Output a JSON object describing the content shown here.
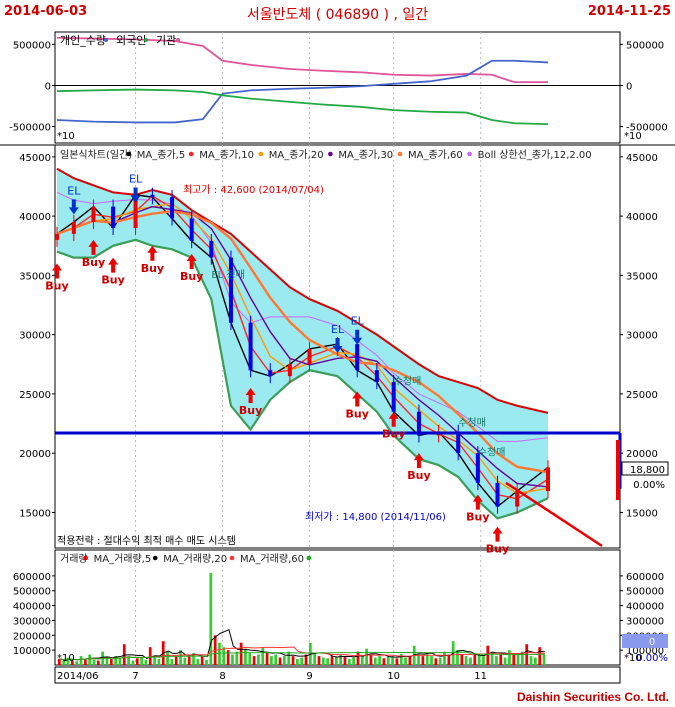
{
  "header": {
    "start_date": "2014-06-03",
    "title": "서울반도체 ( 046890 ) , 일간",
    "end_date": "2014-11-25"
  },
  "footer": {
    "brand": "Daishin Securities Co. Ltd."
  },
  "colors": {
    "individual": "#e0559a",
    "foreign": "#4466cc",
    "institution": "#22aa44",
    "bull": "#ee0000",
    "bear": "#0000ee",
    "support": "#0000cc",
    "ma5": "#000000",
    "ma10": "#ff2222",
    "ma20": "#ff9900",
    "ma30": "#660099",
    "ma60": "#ff7733",
    "band": "#9beaf0",
    "band_upper": "#dd0000",
    "band_mid": "#cc66ff",
    "band_lower": "#3c9e5a"
  },
  "chart_data": [
    {
      "type": "line",
      "panel": "investor",
      "legend": [
        "개인_수량",
        "외국인",
        "기관"
      ],
      "multiplier": "*10",
      "y_ticks": [
        500000,
        0,
        -500000
      ],
      "ylim": [
        -700000,
        650000
      ],
      "x": [
        "2014-06-03",
        "2014-06-16",
        "2014-07-01",
        "2014-07-15",
        "2014-07-25",
        "2014-08-01",
        "2014-08-11",
        "2014-08-25",
        "2014-09-05",
        "2014-09-19",
        "2014-10-01",
        "2014-10-14",
        "2014-10-27",
        "2014-11-05",
        "2014-11-13",
        "2014-11-25"
      ],
      "series": [
        {
          "name": "개인_수량",
          "values": [
            580000,
            570000,
            560000,
            540000,
            480000,
            300000,
            250000,
            200000,
            180000,
            160000,
            130000,
            120000,
            140000,
            130000,
            40000,
            40000
          ]
        },
        {
          "name": "외국인",
          "values": [
            -420000,
            -440000,
            -450000,
            -450000,
            -410000,
            -100000,
            -60000,
            -40000,
            -30000,
            -10000,
            20000,
            50000,
            120000,
            300000,
            300000,
            280000
          ]
        },
        {
          "name": "기관",
          "values": [
            -70000,
            -60000,
            -50000,
            -60000,
            -80000,
            -120000,
            -160000,
            -200000,
            -230000,
            -260000,
            -300000,
            -320000,
            -330000,
            -420000,
            -460000,
            -470000
          ]
        }
      ]
    },
    {
      "type": "candlestick",
      "panel": "price",
      "legend": [
        "일본식차트(일간)",
        "MA_종가,5",
        "MA_종가,10",
        "MA_종가,20",
        "MA_종가,30",
        "MA_종가,60",
        "Boll 상한선_종가,12,2.00"
      ],
      "y_ticks": [
        45000,
        40000,
        35000,
        30000,
        25000,
        20000,
        15000
      ],
      "ylim": [
        12000,
        46000
      ],
      "x": [
        "2014-06-03",
        "2014-06-09",
        "2014-06-16",
        "2014-06-23",
        "2014-07-01",
        "2014-07-07",
        "2014-07-14",
        "2014-07-21",
        "2014-07-28",
        "2014-08-04",
        "2014-08-11",
        "2014-08-18",
        "2014-08-25",
        "2014-09-01",
        "2014-09-11",
        "2014-09-18",
        "2014-09-25",
        "2014-10-01",
        "2014-10-10",
        "2014-10-17",
        "2014-10-24",
        "2014-10-31",
        "2014-11-07",
        "2014-11-14",
        "2014-11-25"
      ],
      "close": [
        38500,
        39500,
        40800,
        39000,
        41800,
        41600,
        39800,
        37900,
        36500,
        31000,
        27000,
        26500,
        27500,
        28800,
        29200,
        27000,
        26000,
        23500,
        21500,
        21800,
        20000,
        17500,
        15500,
        16800,
        18800
      ],
      "bollinger_upper": [
        44000,
        43200,
        42600,
        42000,
        41800,
        42200,
        41800,
        40500,
        39500,
        38500,
        37000,
        35500,
        34000,
        33000,
        32000,
        31000,
        30000,
        29000,
        27500,
        26500,
        26000,
        25500,
        24500,
        24000,
        23400
      ],
      "bollinger_lower": [
        37000,
        36500,
        36500,
        37500,
        38000,
        37500,
        37200,
        36500,
        33000,
        24000,
        22000,
        24500,
        26000,
        27000,
        26500,
        25000,
        23500,
        21500,
        19500,
        19000,
        18000,
        16000,
        14500,
        15000,
        16200
      ],
      "signals": [
        {
          "label": "Buy",
          "x": "2014-06-03",
          "y": 36000
        },
        {
          "label": "EL",
          "x": "2014-06-09",
          "y": 41500
        },
        {
          "label": "Buy",
          "x": "2014-06-16",
          "y": 38000
        },
        {
          "label": "Buy",
          "x": "2014-06-23",
          "y": 36500
        },
        {
          "label": "EL",
          "x": "2014-07-01",
          "y": 42500
        },
        {
          "label": "Buy",
          "x": "2014-07-07",
          "y": 37500
        },
        {
          "label": "Buy",
          "x": "2014-07-21",
          "y": 36800
        },
        {
          "label": "Buy",
          "x": "2014-08-11",
          "y": 25500
        },
        {
          "label": "EL",
          "x": "2014-09-11",
          "y": 29800
        },
        {
          "label": "EL",
          "x": "2014-09-18",
          "y": 30500
        },
        {
          "label": "Buy",
          "x": "2014-09-18",
          "y": 25200
        },
        {
          "label": "Buy",
          "x": "2014-10-01",
          "y": 23500
        },
        {
          "label": "Buy",
          "x": "2014-10-10",
          "y": 20000
        },
        {
          "label": "Buy",
          "x": "2014-10-31",
          "y": 16500
        },
        {
          "label": "Buy",
          "x": "2014-11-07",
          "y": 13800
        }
      ],
      "sell_labels": [
        {
          "label": "EL 청매",
          "x": "2014-07-28",
          "y": 34800
        },
        {
          "label": "수청매",
          "x": "2014-10-01",
          "y": 25800
        },
        {
          "label": "수청매",
          "x": "2014-10-24",
          "y": 22300
        },
        {
          "label": "수청매",
          "x": "2014-10-31",
          "y": 19800
        }
      ],
      "annotations": {
        "high": "최고가 : 42,600 (2014/07/04)",
        "low": "최저가 : 14,800 (2014/11/06)",
        "strategy": "적용전략 : 절대수익 최적 매수 매도 시스템",
        "current_price": "18,800",
        "change_pct": "0.00%",
        "support_level": 21700
      }
    },
    {
      "type": "bar",
      "panel": "volume",
      "legend": [
        "거래량",
        "MA_거래량,5",
        "MA_거래량,20",
        "MA_거래량,60"
      ],
      "multiplier": "*10",
      "y_ticks": [
        600000,
        500000,
        400000,
        300000,
        200000,
        100000
      ],
      "ylim": [
        0,
        680000
      ],
      "values": [
        40000,
        30000,
        50000,
        30000,
        25000,
        60000,
        40000,
        70000,
        35000,
        30000,
        90000,
        50000,
        40000,
        60000,
        45000,
        140000,
        60000,
        30000,
        45000,
        50000,
        35000,
        120000,
        60000,
        40000,
        160000,
        90000,
        40000,
        60000,
        100000,
        50000,
        70000,
        80000,
        40000,
        60000,
        35000,
        620000,
        200000,
        150000,
        120000,
        100000,
        70000,
        90000,
        150000,
        110000,
        80000,
        60000,
        70000,
        120000,
        90000,
        60000,
        70000,
        50000,
        60000,
        90000,
        60000,
        40000,
        50000,
        70000,
        150000,
        80000,
        60000,
        50000,
        45000,
        60000,
        55000,
        70000,
        60000,
        40000,
        50000,
        90000,
        60000,
        110000,
        70000,
        50000,
        60000,
        45000,
        55000,
        60000,
        45000,
        75000,
        50000,
        55000,
        130000,
        70000,
        60000,
        80000,
        60000,
        45000,
        50000,
        90000,
        70000,
        160000,
        100000,
        70000,
        60000,
        50000,
        80000,
        70000,
        60000,
        130000,
        90000,
        60000,
        70000,
        50000,
        100000,
        80000,
        70000,
        90000,
        140000,
        60000,
        50000,
        120000,
        70000
      ],
      "current_volume": "0",
      "change_pct": "0.00%"
    }
  ],
  "x_axis": {
    "labels": [
      "2014/06",
      "7",
      "8",
      "9",
      "10",
      "11"
    ]
  }
}
